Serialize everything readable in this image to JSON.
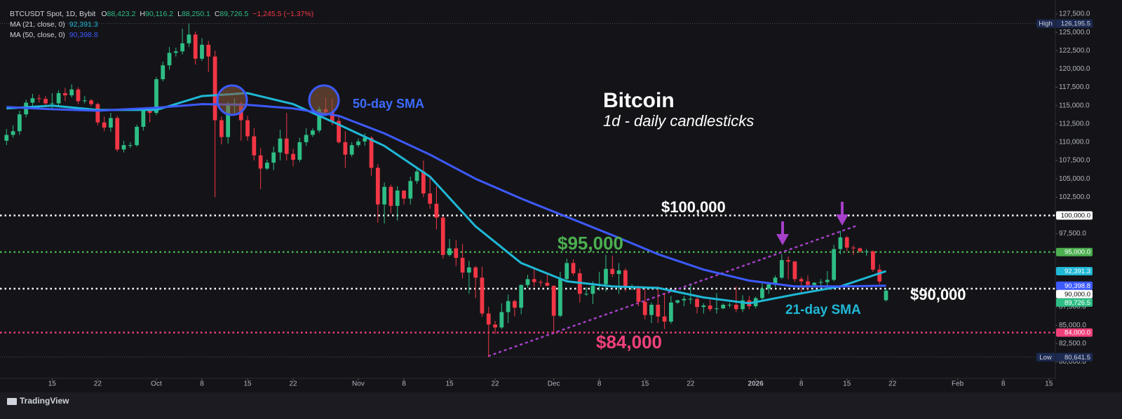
{
  "chart_data": {
    "type": "candlestick",
    "title": "Bitcoin",
    "subtitle": "1d - daily candlesticks",
    "symbol": "BTCUSDT Spot, 1D, Bybit",
    "quote": [
      {
        "tag": "O",
        "value": 88423.2,
        "label": "88,423.2"
      },
      {
        "tag": "H",
        "value": 90116.2,
        "label": "90,116.2"
      },
      {
        "tag": "L",
        "value": 88250.1,
        "label": "88,250.1"
      },
      {
        "tag": "C",
        "value": 89726.5,
        "label": "89,726.5"
      }
    ],
    "change": {
      "value": -1245.5,
      "percent": -1.37,
      "label": "−1,245.5 (−1.37%)"
    },
    "footer": "TradingView",
    "up_color": "#2ebd85",
    "down_color": "#f23645",
    "xlim": [
      "Sep 7",
      "Feb 16"
    ],
    "ylim": [
      77750,
      128650
    ],
    "grid": false,
    "yticks": [
      {
        "value": 80000,
        "label": "80,000.0"
      },
      {
        "value": 82500,
        "label": "82,500.0"
      },
      {
        "value": 85000,
        "label": "85,000.0"
      },
      {
        "value": 87500,
        "label": "87,500.0"
      },
      {
        "value": 90000,
        "label": "90,000.0"
      },
      {
        "value": 92500,
        "label": "92,500.0"
      },
      {
        "value": 95000,
        "label": "95,000.0"
      },
      {
        "value": 97500,
        "label": "97,500.0"
      },
      {
        "value": 100000,
        "label": "100,000.0"
      },
      {
        "value": 102500,
        "label": "102,500.0"
      },
      {
        "value": 105000,
        "label": "105,000.0"
      },
      {
        "value": 107500,
        "label": "107,500.0"
      },
      {
        "value": 110000,
        "label": "110,000.0"
      },
      {
        "value": 112500,
        "label": "112,500.0"
      },
      {
        "value": 115000,
        "label": "115,000.0"
      },
      {
        "value": 117500,
        "label": "117,500.0"
      },
      {
        "value": 120000,
        "label": "120,000.0"
      },
      {
        "value": 122500,
        "label": "122,500.0"
      },
      {
        "value": 125000,
        "label": "125,000.0"
      },
      {
        "value": 127500,
        "label": "127,500.0"
      }
    ],
    "xticks": [
      {
        "value": "Sep 15",
        "label": "15"
      },
      {
        "value": "Sep 22",
        "label": "22"
      },
      {
        "value": "Oct 1",
        "label": "Oct"
      },
      {
        "value": "Oct 8",
        "label": "8"
      },
      {
        "value": "Oct 15",
        "label": "15"
      },
      {
        "value": "Oct 22",
        "label": "22"
      },
      {
        "value": "Nov 1",
        "label": "Nov"
      },
      {
        "value": "Nov 8",
        "label": "8"
      },
      {
        "value": "Nov 15",
        "label": "15"
      },
      {
        "value": "Nov 22",
        "label": "22"
      },
      {
        "value": "Dec 1",
        "label": "Dec"
      },
      {
        "value": "Dec 8",
        "label": "8"
      },
      {
        "value": "Dec 15",
        "label": "15"
      },
      {
        "value": "Dec 22",
        "label": "22"
      },
      {
        "value": "Jan 1",
        "label": "2026"
      },
      {
        "value": "Jan 8",
        "label": "8"
      },
      {
        "value": "Jan 15",
        "label": "15"
      },
      {
        "value": "Jan 22",
        "label": "22"
      },
      {
        "value": "Feb 1",
        "label": "Feb"
      },
      {
        "value": "Feb 8",
        "label": "8"
      },
      {
        "value": "Feb 15",
        "label": "15"
      }
    ],
    "x": [
      "Sep 8",
      "Sep 9",
      "Sep 10",
      "Sep 11",
      "Sep 12",
      "Sep 13",
      "Sep 14",
      "Sep 15",
      "Sep 16",
      "Sep 17",
      "Sep 18",
      "Sep 19",
      "Sep 20",
      "Sep 21",
      "Sep 22",
      "Sep 23",
      "Sep 24",
      "Sep 25",
      "Sep 26",
      "Sep 27",
      "Sep 28",
      "Sep 29",
      "Sep 30",
      "Oct 1",
      "Oct 2",
      "Oct 3",
      "Oct 4",
      "Oct 5",
      "Oct 6",
      "Oct 7",
      "Oct 8",
      "Oct 9",
      "Oct 10",
      "Oct 11",
      "Oct 12",
      "Oct 13",
      "Oct 14",
      "Oct 15",
      "Oct 16",
      "Oct 17",
      "Oct 18",
      "Oct 19",
      "Oct 20",
      "Oct 21",
      "Oct 22",
      "Oct 23",
      "Oct 24",
      "Oct 25",
      "Oct 26",
      "Oct 27",
      "Oct 28",
      "Oct 29",
      "Oct 30",
      "Oct 31",
      "Nov 1",
      "Nov 2",
      "Nov 3",
      "Nov 4",
      "Nov 5",
      "Nov 6",
      "Nov 7",
      "Nov 8",
      "Nov 9",
      "Nov 10",
      "Nov 11",
      "Nov 12",
      "Nov 13",
      "Nov 14",
      "Nov 15",
      "Nov 16",
      "Nov 17",
      "Nov 18",
      "Nov 19",
      "Nov 20",
      "Nov 21",
      "Nov 22",
      "Nov 23",
      "Nov 24",
      "Nov 25",
      "Nov 26",
      "Nov 27",
      "Nov 28",
      "Nov 29",
      "Nov 30",
      "Dec 1",
      "Dec 2",
      "Dec 3",
      "Dec 4",
      "Dec 5",
      "Dec 6",
      "Dec 7",
      "Dec 8",
      "Dec 9",
      "Dec 10",
      "Dec 11",
      "Dec 12",
      "Dec 13",
      "Dec 14",
      "Dec 15",
      "Dec 16",
      "Dec 17",
      "Dec 18",
      "Dec 19",
      "Dec 20",
      "Dec 21",
      "Dec 22",
      "Dec 23",
      "Dec 24",
      "Dec 25",
      "Dec 26",
      "Dec 27",
      "Dec 28",
      "Dec 29",
      "Dec 30",
      "Dec 31",
      "Jan 1",
      "Jan 2",
      "Jan 3",
      "Jan 4",
      "Jan 5",
      "Jan 6",
      "Jan 7",
      "Jan 8",
      "Jan 9",
      "Jan 10",
      "Jan 11",
      "Jan 12",
      "Jan 13",
      "Jan 14",
      "Jan 15",
      "Jan 16",
      "Jan 17",
      "Jan 18",
      "Jan 19",
      "Jan 20",
      "Jan 21"
    ],
    "ohlc": [
      [
        110200,
        111800,
        109600,
        111000
      ],
      [
        111000,
        112300,
        110600,
        111500
      ],
      [
        111500,
        114300,
        111000,
        113800
      ],
      [
        113800,
        115800,
        113400,
        115400
      ],
      [
        115400,
        116600,
        114900,
        116000
      ],
      [
        116000,
        116500,
        115400,
        115900
      ],
      [
        115900,
        116300,
        114800,
        115300
      ],
      [
        115300,
        116700,
        114500,
        115300
      ],
      [
        115300,
        117100,
        114800,
        116700
      ],
      [
        116700,
        117400,
        115600,
        116400
      ],
      [
        116400,
        117900,
        116100,
        117200
      ],
      [
        117200,
        117500,
        115200,
        115600
      ],
      [
        115600,
        116300,
        115300,
        115700
      ],
      [
        115700,
        115900,
        114900,
        115200
      ],
      [
        115200,
        115400,
        112300,
        112700
      ],
      [
        112700,
        113500,
        111500,
        112000
      ],
      [
        112000,
        114000,
        111400,
        113300
      ],
      [
        113300,
        113600,
        108700,
        109000
      ],
      [
        109000,
        110200,
        108600,
        109600
      ],
      [
        109600,
        110000,
        109200,
        109600
      ],
      [
        109600,
        112400,
        109400,
        112100
      ],
      [
        112100,
        114600,
        111600,
        114300
      ],
      [
        114300,
        114800,
        112700,
        114000
      ],
      [
        114000,
        118900,
        113700,
        118600
      ],
      [
        118600,
        121000,
        118300,
        120500
      ],
      [
        120500,
        123000,
        119900,
        122200
      ],
      [
        122200,
        122900,
        121700,
        122400
      ],
      [
        122400,
        125500,
        122000,
        123500
      ],
      [
        123500,
        126195.5,
        123000,
        124700
      ],
      [
        124700,
        125100,
        120600,
        121400
      ],
      [
        121400,
        124200,
        121100,
        123300
      ],
      [
        123300,
        123800,
        119600,
        121700
      ],
      [
        121700,
        122500,
        102500,
        113000
      ],
      [
        113000,
        113500,
        109700,
        110700
      ],
      [
        110700,
        115500,
        109800,
        115100
      ],
      [
        115100,
        116000,
        113800,
        115300
      ],
      [
        115300,
        115600,
        110200,
        113000
      ],
      [
        113000,
        113600,
        110200,
        110800
      ],
      [
        110800,
        111900,
        107500,
        108200
      ],
      [
        108200,
        109200,
        103600,
        106400
      ],
      [
        106400,
        107600,
        106200,
        107200
      ],
      [
        107200,
        109400,
        106200,
        108600
      ],
      [
        108600,
        111700,
        107500,
        110500
      ],
      [
        110500,
        114000,
        107500,
        108400
      ],
      [
        108400,
        109100,
        106700,
        107600
      ],
      [
        107600,
        110600,
        107300,
        110000
      ],
      [
        110000,
        111900,
        109500,
        111000
      ],
      [
        111000,
        111900,
        110700,
        111600
      ],
      [
        111600,
        114900,
        111300,
        114500
      ],
      [
        114500,
        116100,
        113800,
        114100
      ],
      [
        114100,
        116000,
        112300,
        112900
      ],
      [
        112900,
        113600,
        109800,
        110000
      ],
      [
        110000,
        111500,
        106500,
        108300
      ],
      [
        108300,
        110000,
        108000,
        109600
      ],
      [
        109600,
        110500,
        109300,
        110100
      ],
      [
        110100,
        111200,
        109500,
        110600
      ],
      [
        110600,
        110800,
        105400,
        106500
      ],
      [
        106500,
        107000,
        99000,
        101500
      ],
      [
        101500,
        104500,
        98900,
        103900
      ],
      [
        103900,
        104200,
        100300,
        101300
      ],
      [
        101300,
        104000,
        99300,
        103400
      ],
      [
        103400,
        103400,
        101500,
        102300
      ],
      [
        102300,
        105300,
        101500,
        104700
      ],
      [
        104700,
        106600,
        104300,
        106000
      ],
      [
        106000,
        107500,
        102500,
        103000
      ],
      [
        103000,
        105300,
        100900,
        101600
      ],
      [
        101600,
        104000,
        98100,
        99700
      ],
      [
        99700,
        99900,
        94100,
        94600
      ],
      [
        94600,
        96800,
        94400,
        95500
      ],
      [
        95500,
        96600,
        93100,
        94200
      ],
      [
        94200,
        96100,
        91400,
        92200
      ],
      [
        92200,
        93800,
        89300,
        92900
      ],
      [
        92900,
        93100,
        88700,
        91500
      ],
      [
        91500,
        93000,
        86200,
        86600
      ],
      [
        86600,
        87500,
        80641.5,
        85100
      ],
      [
        85100,
        85600,
        83800,
        84700
      ],
      [
        84700,
        88000,
        84500,
        86800
      ],
      [
        86800,
        89200,
        85300,
        88300
      ],
      [
        88300,
        88500,
        86200,
        87400
      ],
      [
        87400,
        90600,
        86500,
        90500
      ],
      [
        90500,
        91900,
        90100,
        91300
      ],
      [
        91300,
        92900,
        90300,
        90900
      ],
      [
        90900,
        91200,
        90300,
        90800
      ],
      [
        90800,
        92000,
        90300,
        90400
      ],
      [
        90400,
        90400,
        83900,
        86300
      ],
      [
        86300,
        92300,
        86100,
        91300
      ],
      [
        91300,
        94100,
        91000,
        93500
      ],
      [
        93500,
        94000,
        91800,
        92100
      ],
      [
        92100,
        92700,
        88100,
        89300
      ],
      [
        89300,
        90200,
        89000,
        89300
      ],
      [
        89300,
        91000,
        87900,
        90400
      ],
      [
        90400,
        92300,
        89700,
        90600
      ],
      [
        90600,
        94600,
        89600,
        92700
      ],
      [
        92700,
        94500,
        91600,
        92000
      ],
      [
        92000,
        93500,
        89300,
        92500
      ],
      [
        92500,
        92800,
        89600,
        90300
      ],
      [
        90300,
        90600,
        89800,
        90300
      ],
      [
        90300,
        90400,
        87600,
        88200
      ],
      [
        88200,
        90000,
        85800,
        86400
      ],
      [
        86400,
        88100,
        85300,
        87800
      ],
      [
        87800,
        90300,
        85300,
        86200
      ],
      [
        86200,
        89400,
        84500,
        85500
      ],
      [
        85500,
        89000,
        85200,
        88100
      ],
      [
        88100,
        88500,
        87900,
        88400
      ],
      [
        88400,
        89000,
        87600,
        88600
      ],
      [
        88600,
        90500,
        87900,
        88600
      ],
      [
        88600,
        88900,
        86600,
        87500
      ],
      [
        87500,
        88000,
        86600,
        87700
      ],
      [
        87700,
        88500,
        86900,
        87200
      ],
      [
        87200,
        89400,
        86600,
        87300
      ],
      [
        87300,
        88000,
        87200,
        87800
      ],
      [
        87800,
        88100,
        87400,
        87800
      ],
      [
        87800,
        90300,
        86800,
        87200
      ],
      [
        87200,
        89100,
        86800,
        88400
      ],
      [
        88400,
        89000,
        87200,
        87600
      ],
      [
        87600,
        88900,
        87300,
        88700
      ],
      [
        88700,
        90900,
        88300,
        90000
      ],
      [
        90000,
        90800,
        89300,
        90600
      ],
      [
        90600,
        91800,
        90200,
        91500
      ],
      [
        91500,
        94700,
        91300,
        93900
      ],
      [
        93900,
        94400,
        91300,
        93700
      ],
      [
        93700,
        93800,
        90900,
        91300
      ],
      [
        91300,
        91600,
        89500,
        91000
      ],
      [
        91000,
        91800,
        89700,
        90500
      ],
      [
        90500,
        90900,
        90200,
        90800
      ],
      [
        90800,
        91300,
        90400,
        90900
      ],
      [
        90900,
        92400,
        90000,
        91200
      ],
      [
        91200,
        96000,
        91000,
        95400
      ],
      [
        95400,
        97900,
        94700,
        97000
      ],
      [
        97000,
        97200,
        95100,
        95600
      ],
      [
        95600,
        95900,
        94600,
        95500
      ],
      [
        95500,
        95600,
        94900,
        95100
      ],
      [
        95100,
        95400,
        94500,
        95100
      ],
      [
        95100,
        95200,
        92300,
        92600
      ],
      [
        92600,
        93300,
        90600,
        90972
      ],
      [
        88423.2,
        90116.2,
        88250.1,
        89726.5
      ]
    ],
    "series": [
      {
        "name": "MA (21, close, 0)",
        "color": "#1fb8d6",
        "last_label": "92,391.3",
        "annotation": "21-day SMA",
        "x": [
          "Sep 8",
          "Sep 15",
          "Sep 22",
          "Oct 1",
          "Oct 8",
          "Oct 15",
          "Oct 22",
          "Oct 29",
          "Nov 5",
          "Nov 12",
          "Nov 19",
          "Nov 26",
          "Dec 3",
          "Dec 10",
          "Dec 17",
          "Dec 24",
          "Dec 31",
          "Jan 7",
          "Jan 14",
          "Jan 21"
        ],
        "values": [
          114600,
          115000,
          114400,
          114400,
          116300,
          116700,
          115200,
          112400,
          109500,
          105300,
          98500,
          93500,
          91000,
          90300,
          90100,
          88800,
          88000,
          89200,
          90300,
          92391.3
        ]
      },
      {
        "name": "MA (50, close, 0)",
        "color": "#3d5afe",
        "last_label": "90,398.8",
        "annotation": "50-day SMA",
        "x": [
          "Sep 8",
          "Sep 15",
          "Sep 22",
          "Oct 1",
          "Oct 8",
          "Oct 15",
          "Oct 22",
          "Oct 29",
          "Nov 5",
          "Nov 12",
          "Nov 19",
          "Nov 26",
          "Dec 3",
          "Dec 10",
          "Dec 17",
          "Dec 24",
          "Dec 31",
          "Jan 7",
          "Jan 14",
          "Jan 21"
        ],
        "values": [
          114800,
          114500,
          114300,
          114700,
          115200,
          115100,
          114600,
          113600,
          111200,
          108300,
          105000,
          102300,
          99800,
          97300,
          94700,
          92600,
          91100,
          90300,
          90300,
          90398.8
        ]
      }
    ],
    "levels": [
      {
        "value": 100000,
        "label": "100,000.0",
        "annotation": "$100,000",
        "color": "#ffffff"
      },
      {
        "value": 95000,
        "label": "95,000.0",
        "annotation": "$95,000",
        "color": "#4caf50"
      },
      {
        "value": 90000,
        "label": "90,000.0",
        "annotation": "$90,000",
        "color": "#ffffff"
      },
      {
        "value": 84000,
        "label": "84,000.0",
        "annotation": "$84,000",
        "color": "#f0407a"
      }
    ],
    "extremes": [
      {
        "tag": "High",
        "value": 126195.5,
        "label": "126,195.5"
      },
      {
        "tag": "Low",
        "value": 80641.5,
        "label": "80,641.5"
      }
    ]
  }
}
